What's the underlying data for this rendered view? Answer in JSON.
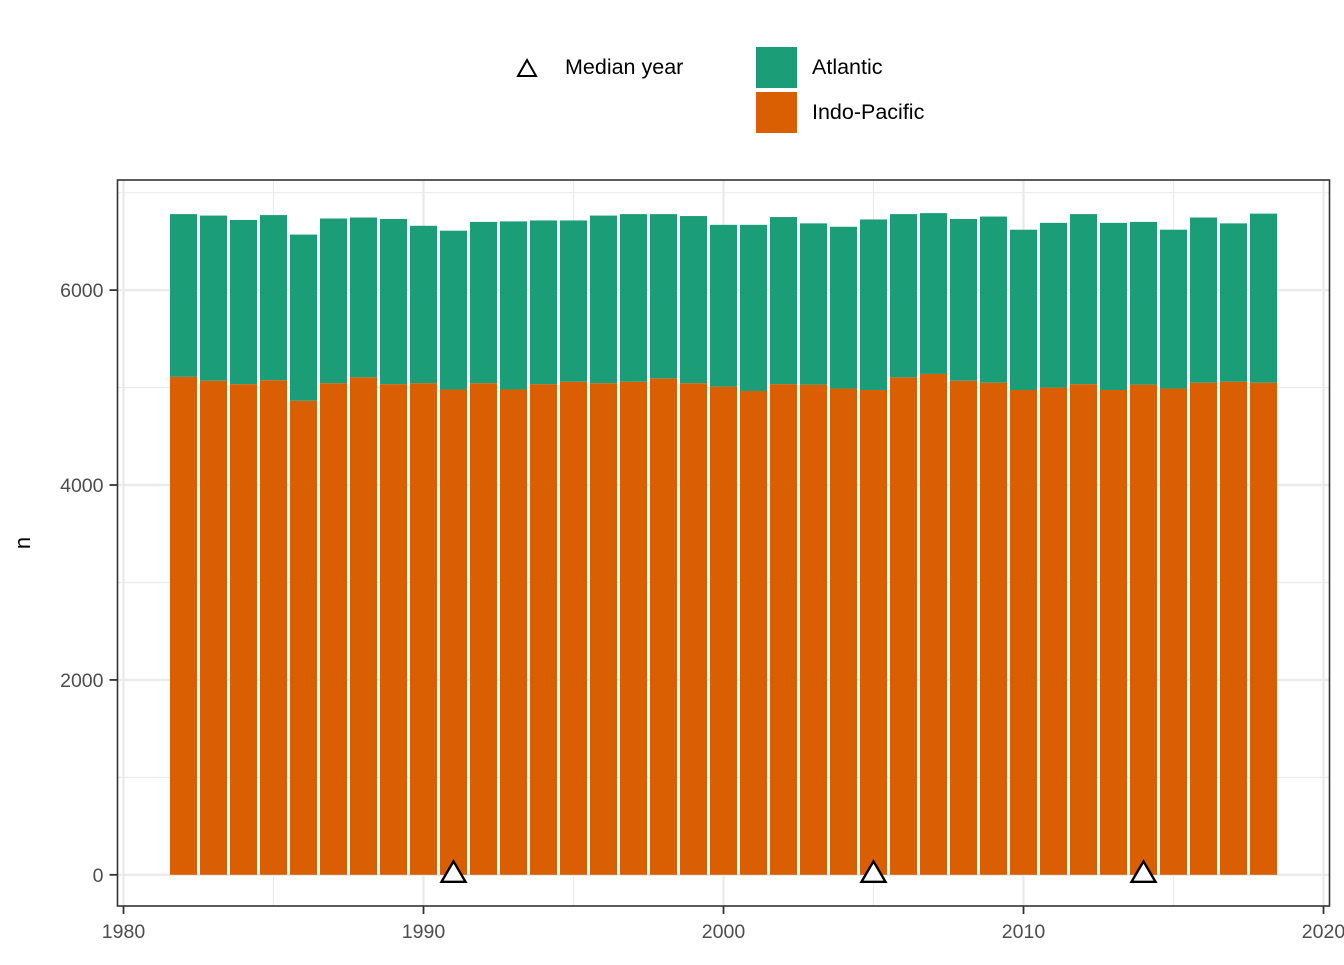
{
  "colors": {
    "atlantic": "#1b9e77",
    "indo_pacific": "#d95f02",
    "grid": "#ebebeb",
    "panel_border": "#333333",
    "tick_text": "#4d4d4d",
    "axis_text": "#000000",
    "marker_fill": "#ffffff",
    "marker_stroke": "#000000"
  },
  "legend": {
    "median_label": "Median year",
    "atlantic_label": "Atlantic",
    "indo_pacific_label": "Indo-Pacific"
  },
  "chart_data": {
    "type": "bar",
    "stacked": true,
    "title": "",
    "xlabel": "",
    "ylabel": "n",
    "grid": true,
    "legend_position": "top",
    "x": [
      1982,
      1983,
      1984,
      1985,
      1986,
      1987,
      1988,
      1989,
      1990,
      1991,
      1992,
      1993,
      1994,
      1995,
      1996,
      1997,
      1998,
      1999,
      2000,
      2001,
      2002,
      2003,
      2004,
      2005,
      2006,
      2007,
      2008,
      2009,
      2010,
      2011,
      2012,
      2013,
      2014,
      2015,
      2016,
      2017,
      2018
    ],
    "series": [
      {
        "name": "Atlantic",
        "color": "#1b9e77",
        "values": [
          1670,
          1695,
          1685,
          1695,
          1705,
          1690,
          1640,
          1695,
          1615,
          1630,
          1655,
          1725,
          1680,
          1655,
          1720,
          1720,
          1685,
          1715,
          1660,
          1705,
          1715,
          1655,
          1660,
          1750,
          1675,
          1650,
          1660,
          1705,
          1645,
          1690,
          1745,
          1715,
          1670,
          1630,
          1695,
          1625,
          1735
        ]
      },
      {
        "name": "Indo-Pacific",
        "color": "#d95f02",
        "values": [
          5110,
          5070,
          5035,
          5075,
          4865,
          5045,
          5105,
          5035,
          5045,
          4980,
          5045,
          4980,
          5035,
          5060,
          5045,
          5060,
          5095,
          5045,
          5010,
          4965,
          5035,
          5030,
          4990,
          4975,
          5105,
          5140,
          5070,
          5050,
          4975,
          5000,
          5035,
          4975,
          5030,
          4990,
          5050,
          5060,
          5050
        ]
      }
    ],
    "median_year_markers": {
      "label": "Median year",
      "symbol": "open-triangle",
      "years": [
        1991,
        2005,
        2014
      ]
    },
    "x_ticks": [
      1980,
      1990,
      2000,
      2010,
      2020
    ],
    "x_minor": [
      1985,
      1995,
      2005,
      2015
    ],
    "y_ticks": [
      0,
      2000,
      4000,
      6000
    ],
    "y_minor": [
      1000,
      3000,
      5000,
      7000
    ],
    "xlim": [
      1979.8,
      2020.2
    ],
    "ylim": [
      -320,
      7130
    ]
  }
}
